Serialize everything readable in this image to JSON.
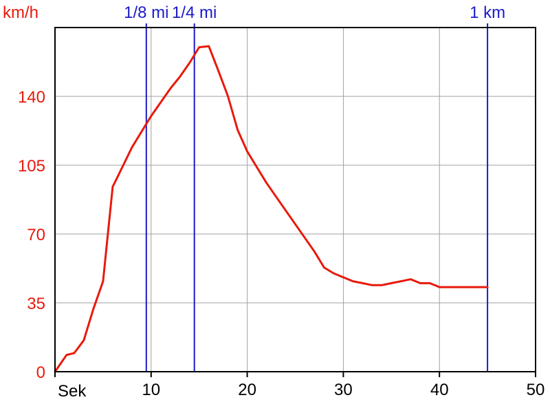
{
  "chart_data": {
    "type": "line",
    "y_unit_label": "km/h",
    "x_unit_label": "Sek",
    "xlim": [
      0,
      50
    ],
    "ylim": [
      0,
      175
    ],
    "x_ticks": [
      10,
      20,
      30,
      40,
      50
    ],
    "y_ticks": [
      0,
      35,
      70,
      105,
      140
    ],
    "grid": true,
    "colors": {
      "series": "#e8190c",
      "markers": "#1a1acb",
      "grid": "#a0a0a0",
      "axis": "#000000"
    },
    "markers": [
      {
        "label": "1/8 mi",
        "x": 9.5
      },
      {
        "label": "1/4 mi",
        "x": 14.5
      },
      {
        "label": "1 km",
        "x": 45.0
      }
    ],
    "series": [
      {
        "x": [
          0,
          1.2,
          2.0,
          3.0,
          4.0,
          5.0,
          6.0,
          7.0,
          8.0,
          9.0,
          10.0,
          11.0,
          12.0,
          13.0,
          14.0,
          15.0,
          16.0,
          17.0,
          18.0,
          19.0,
          20.0,
          21.0,
          22.0,
          23.0,
          24.0,
          25.0,
          26.0,
          27.0,
          28.0,
          29.0,
          30.0,
          31.0,
          32.0,
          33.0,
          34.0,
          35.0,
          36.0,
          37.0,
          38.0,
          39.0,
          40.0,
          41.0,
          42.0,
          43.0,
          44.0,
          45.0
        ],
        "values": [
          0,
          8.5,
          9.5,
          16,
          32,
          46,
          94,
          104,
          114,
          122,
          130,
          137,
          144,
          150,
          157,
          165,
          165.5,
          153,
          140,
          123,
          112,
          104,
          96,
          89,
          82,
          75,
          68,
          61,
          53,
          50,
          48,
          46,
          45,
          44,
          44,
          45,
          46,
          47,
          45,
          45,
          43,
          43,
          43,
          43,
          43,
          43
        ]
      }
    ]
  }
}
